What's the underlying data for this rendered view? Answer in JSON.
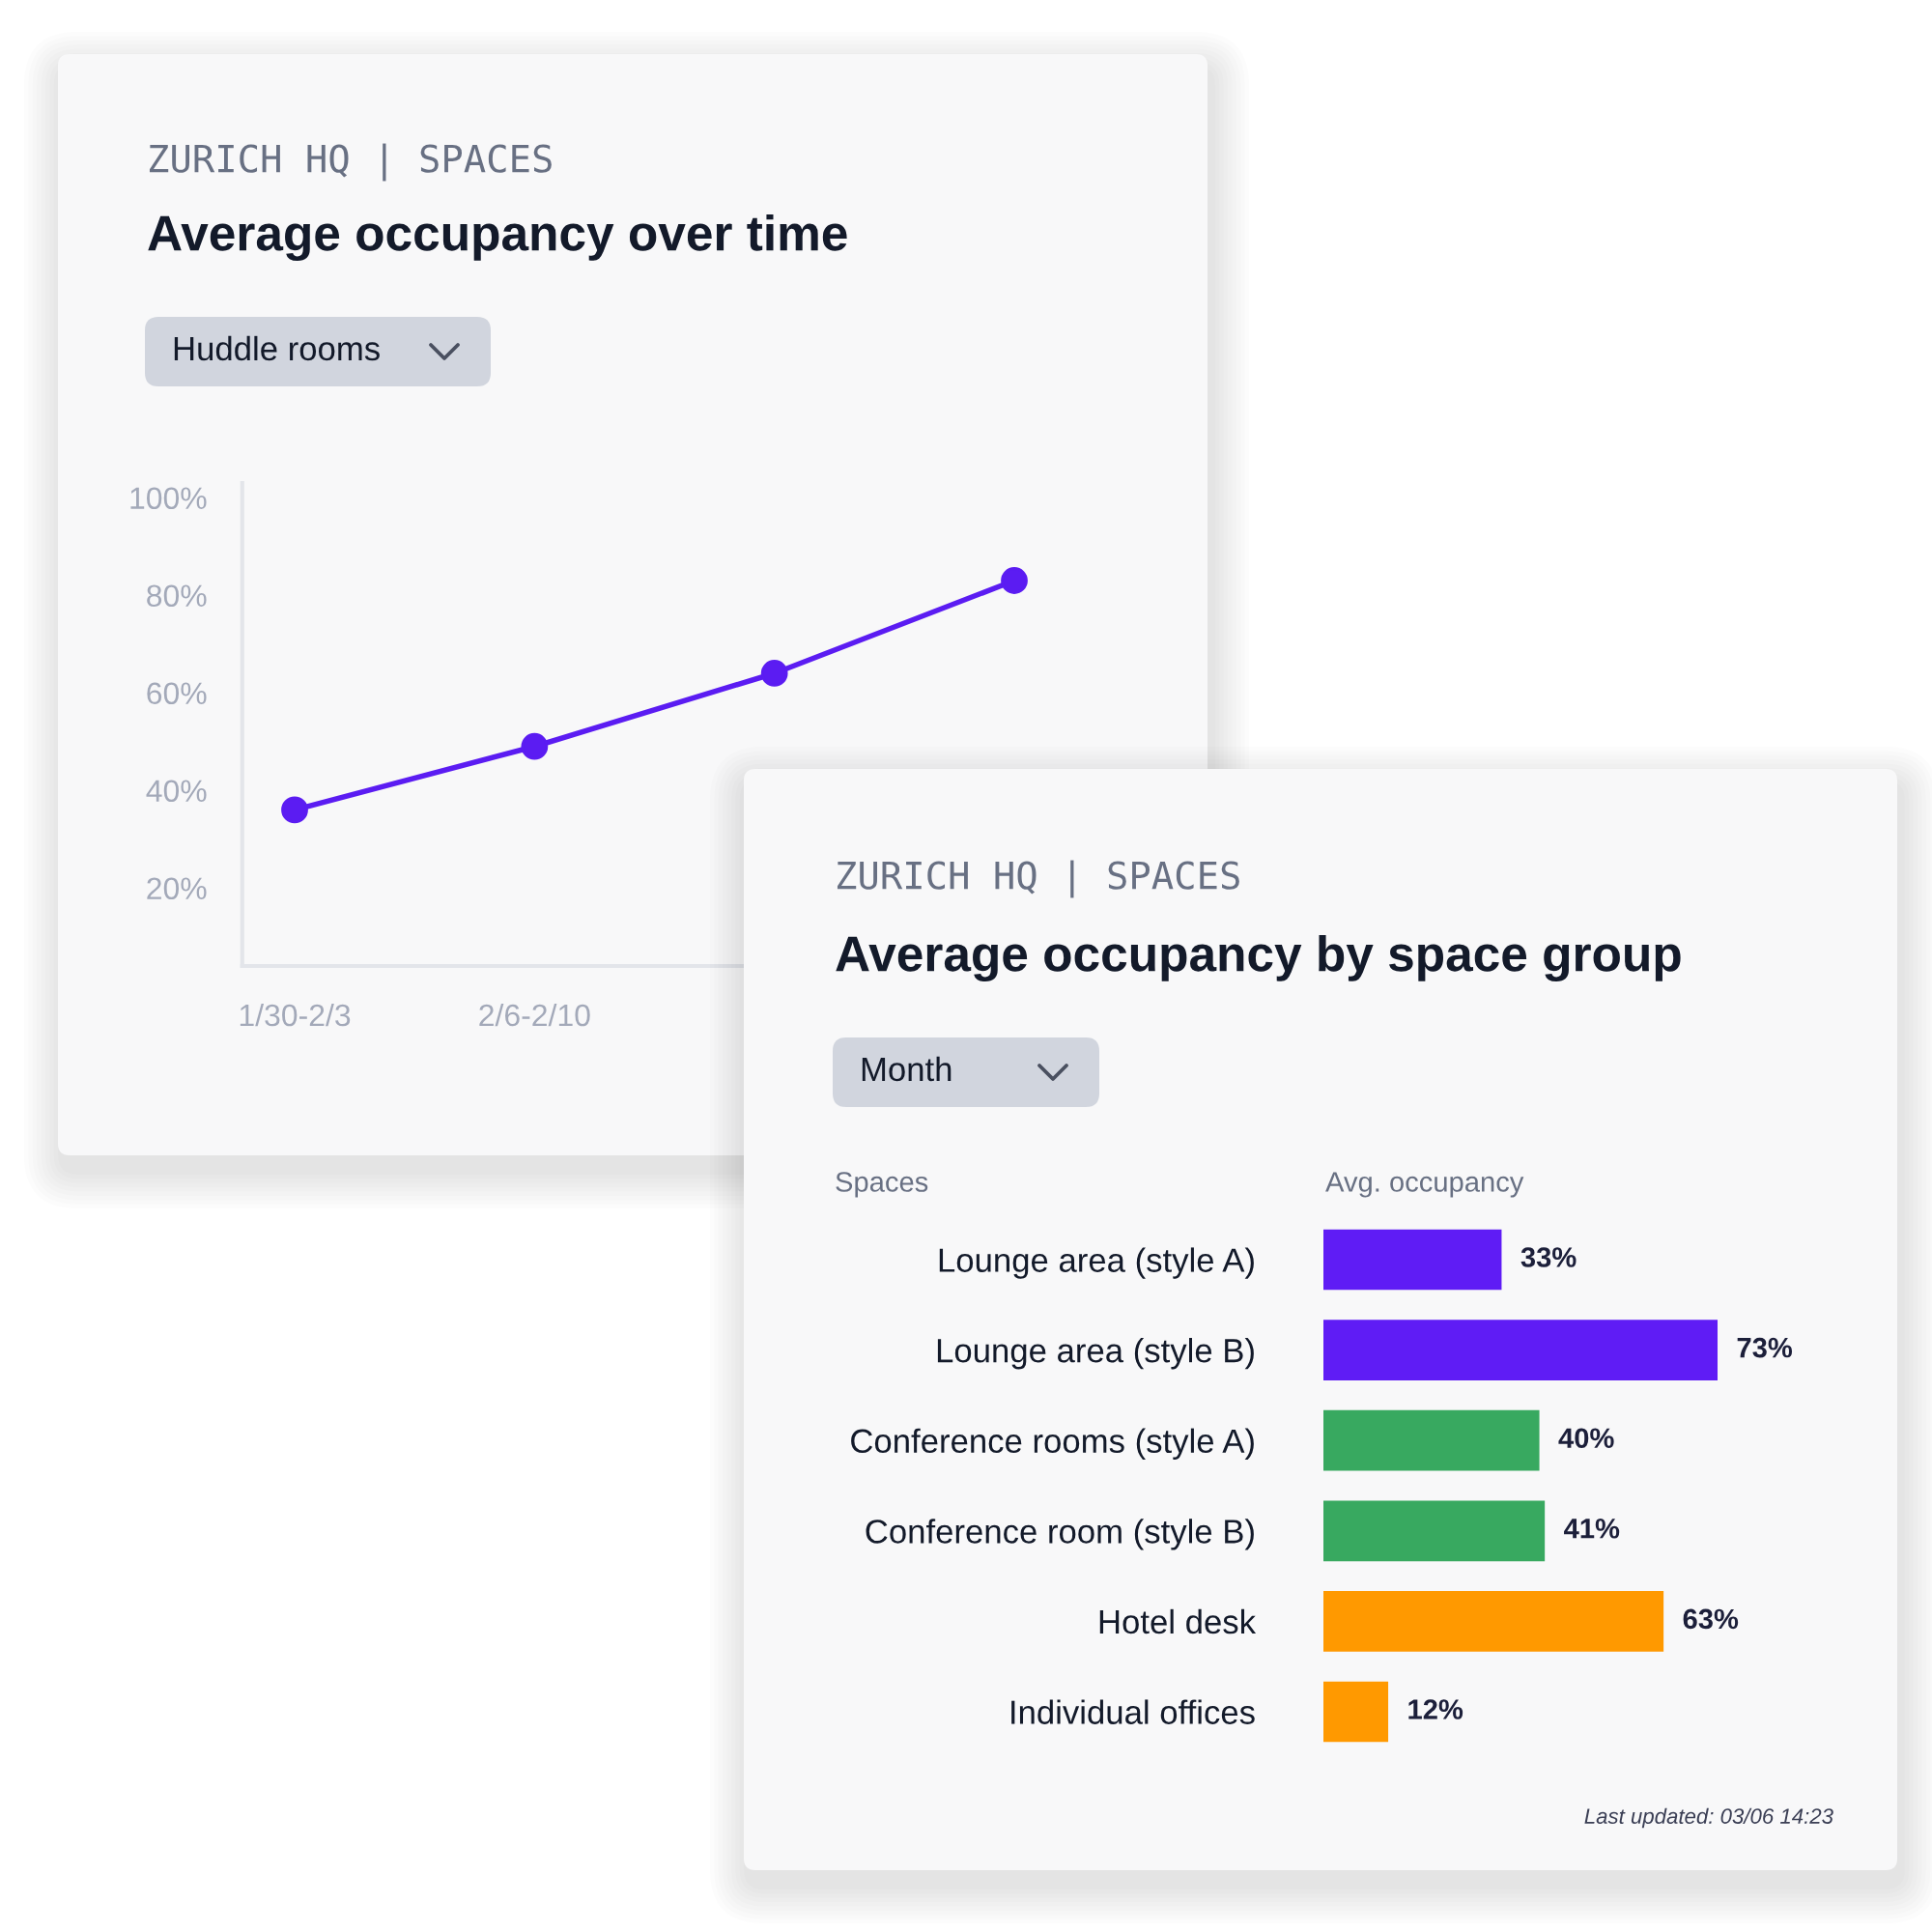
{
  "chart_data": [
    {
      "type": "line",
      "subtitle": "ZURICH HQ | SPACES",
      "title": "Average occupancy over time",
      "annotations": [
        "Huddle rooms"
      ],
      "categories": [
        "1/30-2/3",
        "2/6-2/10",
        null,
        null
      ],
      "series": [
        {
          "color": "#5b1cf2",
          "values": [
            36,
            49,
            64,
            83
          ]
        }
      ],
      "ylim": [
        4,
        103
      ],
      "yticks": [
        {
          "value": 20,
          "label": "20%"
        },
        {
          "value": 40,
          "label": "40%"
        },
        {
          "value": 60,
          "label": "60%"
        },
        {
          "value": 80,
          "label": "80%"
        },
        {
          "value": 100,
          "label": "100%"
        }
      ],
      "marker": "circle",
      "line_style": "solid"
    },
    {
      "type": "bar",
      "orientation": "horizontal",
      "subtitle": "ZURICH HQ | SPACES",
      "title": "Average occupancy by space group",
      "ylabel": "Spaces",
      "xlabel": "Avg. occupancy",
      "annotations": [
        "Month",
        "Last updated: 03/06 14:23"
      ],
      "categories": [
        "Lounge area (style A)",
        "Lounge area (style B)",
        "Conference rooms (style A)",
        "Conference room (style B)",
        "Hotel desk",
        "Individual offices"
      ],
      "values": [
        33,
        73,
        40,
        41,
        63,
        12
      ],
      "colors": [
        "#5f1cf5",
        "#5f1cf5",
        "#38a960",
        "#38a960",
        "#ff9900",
        "#ff9900"
      ],
      "value_labels": [
        "33%",
        "73%",
        "40%",
        "41%",
        "63%",
        "12%"
      ]
    }
  ]
}
